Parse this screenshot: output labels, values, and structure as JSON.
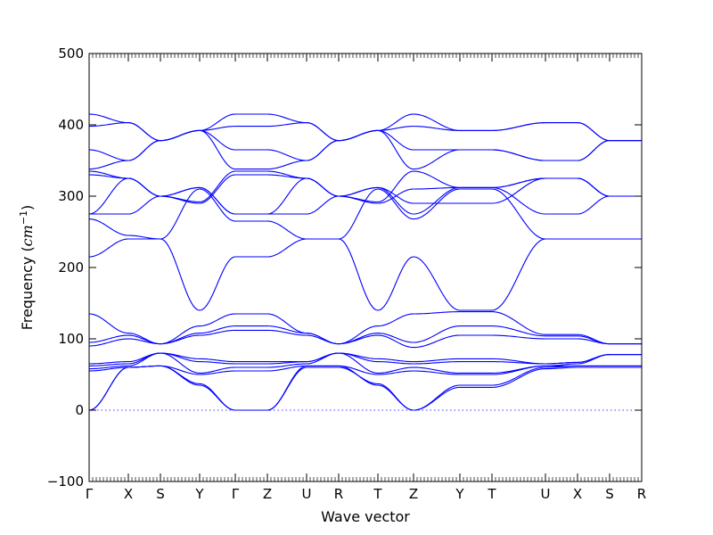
{
  "chart_data": {
    "type": "line",
    "title": "",
    "xlabel": "Wave vector",
    "ylabel_main": "Frequency (",
    "ylabel_unit": "cm",
    "ylabel_exp": "−1",
    "ylabel_close": ")",
    "ylim": [
      -100,
      500
    ],
    "yticks": [
      -100,
      0,
      100,
      200,
      300,
      400,
      500
    ],
    "line_color": "#0000ff",
    "zero_line": 0,
    "kpath": [
      {
        "label": "Γ",
        "x": 0.0
      },
      {
        "label": "X",
        "x": 0.55
      },
      {
        "label": "S",
        "x": 1.0
      },
      {
        "label": "Y",
        "x": 1.55
      },
      {
        "label": "Γ",
        "x": 2.05
      },
      {
        "label": "Z",
        "x": 2.5
      },
      {
        "label": "U",
        "x": 3.05
      },
      {
        "label": "R",
        "x": 3.5
      },
      {
        "label": "T",
        "x": 4.05
      },
      {
        "label": "Z",
        "x": 4.55
      },
      {
        "label": "Y",
        "x": 5.2
      },
      {
        "label": "T",
        "x": 5.65
      },
      {
        "label": "U",
        "x": 6.4
      },
      {
        "label": "X",
        "x": 6.85
      },
      {
        "label": "S",
        "x": 7.3
      },
      {
        "label": "R",
        "x": 7.75
      }
    ],
    "bands": [
      [
        0,
        60,
        62,
        37,
        0,
        0,
        60,
        60,
        37,
        0,
        32,
        32,
        58,
        60,
        60,
        60
      ],
      [
        0,
        60,
        62,
        35,
        0,
        0,
        62,
        62,
        35,
        0,
        35,
        35,
        60,
        62,
        62,
        62
      ],
      [
        55,
        60,
        62,
        50,
        55,
        55,
        62,
        62,
        50,
        55,
        50,
        50,
        62,
        62,
        62,
        62
      ],
      [
        58,
        62,
        80,
        52,
        60,
        60,
        65,
        80,
        52,
        60,
        52,
        52,
        62,
        65,
        78,
        78
      ],
      [
        62,
        65,
        80,
        68,
        65,
        65,
        68,
        80,
        68,
        65,
        68,
        68,
        65,
        67,
        78,
        78
      ],
      [
        65,
        68,
        80,
        72,
        68,
        68,
        68,
        80,
        72,
        68,
        72,
        72,
        65,
        67,
        78,
        78
      ],
      [
        90,
        100,
        93,
        105,
        112,
        112,
        105,
        93,
        105,
        88,
        105,
        105,
        100,
        100,
        93,
        93
      ],
      [
        95,
        105,
        93,
        108,
        118,
        118,
        108,
        93,
        108,
        95,
        118,
        118,
        104,
        104,
        93,
        93
      ],
      [
        135,
        108,
        93,
        118,
        135,
        135,
        108,
        93,
        118,
        135,
        138,
        138,
        106,
        106,
        93,
        93
      ],
      [
        215,
        240,
        240,
        310,
        265,
        265,
        240,
        240,
        310,
        268,
        310,
        310,
        240,
        240,
        240,
        240
      ],
      [
        268,
        245,
        240,
        140,
        215,
        215,
        240,
        240,
        140,
        215,
        140,
        140,
        240,
        240,
        240,
        240
      ],
      [
        275,
        275,
        300,
        312,
        275,
        275,
        275,
        300,
        312,
        275,
        312,
        312,
        275,
        275,
        300,
        300
      ],
      [
        275,
        325,
        300,
        312,
        275,
        275,
        325,
        300,
        312,
        290,
        290,
        290,
        325,
        325,
        300,
        300
      ],
      [
        330,
        325,
        300,
        290,
        330,
        330,
        325,
        300,
        290,
        310,
        312,
        312,
        325,
        325,
        300,
        300
      ],
      [
        335,
        325,
        300,
        292,
        335,
        335,
        325,
        300,
        292,
        335,
        312,
        312,
        325,
        325,
        300,
        300
      ],
      [
        338,
        350,
        378,
        392,
        338,
        338,
        350,
        378,
        392,
        338,
        365,
        365,
        350,
        350,
        378,
        378
      ],
      [
        365,
        350,
        378,
        392,
        365,
        365,
        350,
        378,
        392,
        365,
        365,
        365,
        350,
        350,
        378,
        378
      ],
      [
        398,
        403,
        378,
        392,
        398,
        398,
        403,
        378,
        392,
        398,
        392,
        392,
        403,
        403,
        378,
        378
      ],
      [
        415,
        403,
        378,
        392,
        415,
        415,
        403,
        378,
        392,
        415,
        392,
        392,
        403,
        403,
        378,
        378
      ]
    ]
  }
}
